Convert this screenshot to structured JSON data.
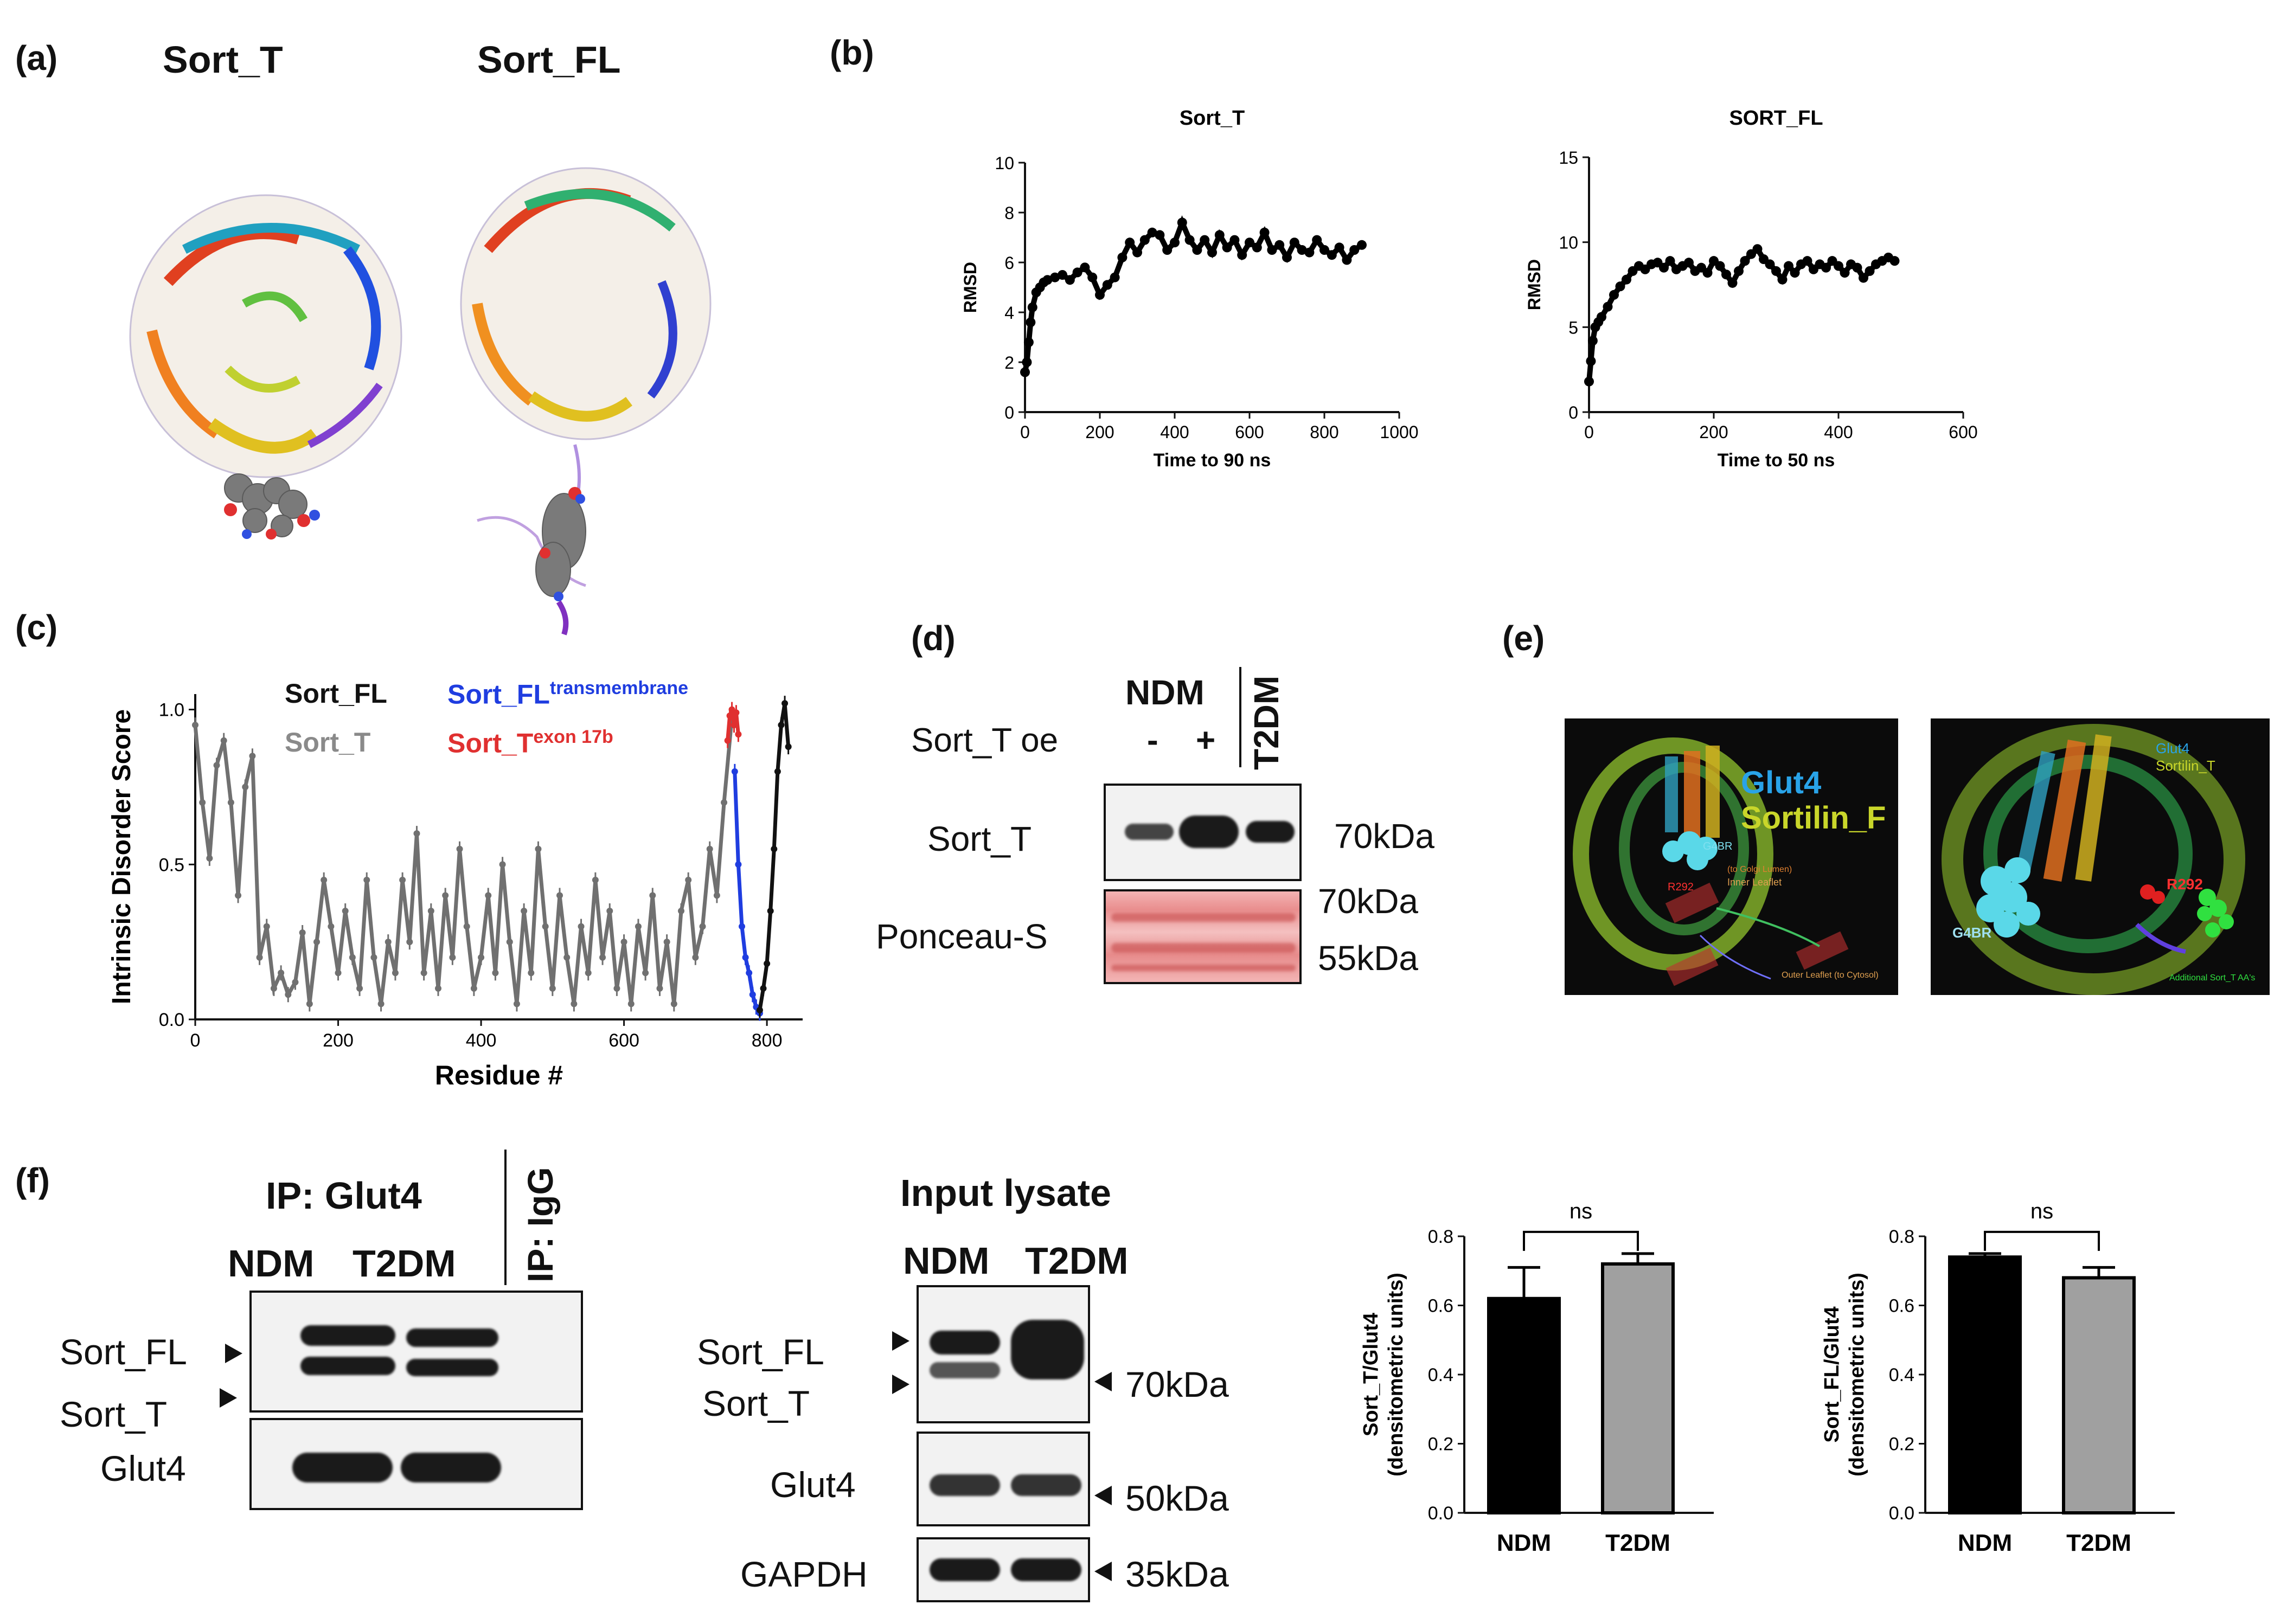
{
  "panels": {
    "a": "(a)",
    "b": "(b)",
    "c": "(c)",
    "d": "(d)",
    "e": "(e)",
    "f": "(f)"
  },
  "panel_a": {
    "title_left": "Sort_T",
    "title_right": "Sort_FL"
  },
  "panel_c": {
    "legend": {
      "sort_fl": "Sort_FL",
      "sort_t": "Sort_T",
      "tm_base": "Sort_FL",
      "tm_sup": "transmembrane",
      "exon_base": "Sort_T",
      "exon_sup": "exon 17b"
    }
  },
  "panel_d": {
    "ndm": "NDM",
    "t2dm": "T2DM",
    "oe_label": "Sort_T oe",
    "minus": "-",
    "plus": "+",
    "row1": "Sort_T",
    "row2": "Ponceau-S",
    "mw1": "70kDa",
    "mw2": "70kDa",
    "mw3": "55kDa"
  },
  "panel_e": {
    "left": {
      "glut4": "Glut4",
      "sortilin": "Sortilin_F",
      "g4br": "G4BR",
      "r292": "R292",
      "lumen": "(to Golgi Lumen)",
      "inner": "Inner Leaflet",
      "outer": "Outer Leaflet (to Cytosol)"
    },
    "right": {
      "glut4": "Glut4",
      "sortilin": "Sortilin_T",
      "r292": "R292",
      "g4br": "G4BR",
      "extra": "Additional Sort_T AA's"
    }
  },
  "panel_f": {
    "ip_title": "IP: Glut4",
    "igg": "IP: IgG",
    "ndm": "NDM",
    "t2dm": "T2DM",
    "sort_fl": "Sort_FL",
    "sort_t": "Sort_T",
    "glut4": "Glut4",
    "input_title": "Input lysate",
    "in_ndm": "NDM",
    "in_t2dm": "T2DM",
    "in_sort_fl": "Sort_FL",
    "in_sort_t": "Sort_T",
    "in_glut4": "Glut4",
    "in_gapdh": "GAPDH",
    "mw70": "70kDa",
    "mw50": "50kDa",
    "mw35": "35kDa"
  },
  "chart_data": [
    {
      "id": "rmsd_sort_t",
      "type": "scatter",
      "title": "Sort_T",
      "xlabel": "Time to 90 ns",
      "ylabel": "RMSD",
      "xlim": [
        0,
        1000
      ],
      "ylim": [
        0,
        10
      ],
      "xticks": [
        0,
        200,
        400,
        600,
        800,
        1000
      ],
      "yticks": [
        0,
        2,
        4,
        6,
        8,
        10
      ],
      "x": [
        0,
        5,
        10,
        15,
        20,
        30,
        40,
        50,
        60,
        80,
        100,
        120,
        140,
        160,
        180,
        200,
        220,
        240,
        260,
        280,
        300,
        320,
        340,
        360,
        380,
        400,
        420,
        440,
        460,
        480,
        500,
        520,
        540,
        560,
        580,
        600,
        620,
        640,
        660,
        680,
        700,
        720,
        740,
        760,
        780,
        800,
        820,
        840,
        860,
        880,
        900
      ],
      "y": [
        1.6,
        2.0,
        2.8,
        3.6,
        4.2,
        4.8,
        5.0,
        5.2,
        5.3,
        5.4,
        5.5,
        5.3,
        5.6,
        5.8,
        5.4,
        4.7,
        5.1,
        5.4,
        6.2,
        6.8,
        6.4,
        6.9,
        7.2,
        7.1,
        6.5,
        6.8,
        7.6,
        6.9,
        6.5,
        6.9,
        6.4,
        7.1,
        6.6,
        6.9,
        6.3,
        6.8,
        6.6,
        7.2,
        6.5,
        6.7,
        6.2,
        6.8,
        6.5,
        6.4,
        6.9,
        6.5,
        6.3,
        6.6,
        6.1,
        6.5,
        6.7
      ]
    },
    {
      "id": "rmsd_sort_fl",
      "type": "scatter",
      "title": "SORT_FL",
      "xlabel": "Time to 50 ns",
      "ylabel": "RMSD",
      "xlim": [
        0,
        600
      ],
      "ylim": [
        0,
        15
      ],
      "xticks": [
        0,
        200,
        400,
        600
      ],
      "yticks": [
        0,
        5,
        10,
        15
      ],
      "x": [
        0,
        3,
        6,
        10,
        15,
        20,
        30,
        40,
        50,
        60,
        70,
        80,
        90,
        100,
        110,
        120,
        130,
        140,
        150,
        160,
        170,
        180,
        190,
        200,
        210,
        220,
        230,
        240,
        250,
        260,
        270,
        280,
        290,
        300,
        310,
        320,
        330,
        340,
        350,
        360,
        370,
        380,
        390,
        400,
        410,
        420,
        430,
        440,
        450,
        460,
        470,
        480,
        490
      ],
      "y": [
        1.8,
        3.0,
        4.2,
        5.0,
        5.3,
        5.6,
        6.2,
        6.9,
        7.4,
        7.8,
        8.3,
        8.6,
        8.4,
        8.7,
        8.8,
        8.5,
        8.9,
        8.4,
        8.6,
        8.8,
        8.3,
        8.5,
        8.2,
        8.9,
        8.6,
        8.1,
        7.6,
        8.3,
        8.9,
        9.3,
        9.6,
        9.0,
        8.7,
        8.3,
        7.8,
        8.6,
        8.2,
        8.7,
        8.9,
        8.4,
        8.7,
        8.5,
        8.9,
        8.6,
        8.2,
        8.7,
        8.5,
        7.9,
        8.3,
        8.7,
        8.9,
        9.1,
        8.9
      ]
    },
    {
      "id": "intrinsic_disorder",
      "type": "line",
      "xlabel": "Residue #",
      "ylabel": "Intrinsic  Disorder Score",
      "xlim": [
        0,
        850
      ],
      "ylim": [
        0,
        1.05
      ],
      "xticks": [
        0,
        200,
        400,
        600,
        800
      ],
      "yticks": [
        0.0,
        0.5,
        1.0
      ],
      "series": [
        {
          "name": "Sort_T",
          "color": "#707070",
          "x": [
            0,
            10,
            20,
            30,
            40,
            50,
            60,
            70,
            80,
            90,
            100,
            110,
            120,
            130,
            140,
            150,
            160,
            170,
            180,
            190,
            200,
            210,
            220,
            230,
            240,
            250,
            260,
            270,
            280,
            290,
            300,
            310,
            320,
            330,
            340,
            350,
            360,
            370,
            380,
            390,
            400,
            410,
            420,
            430,
            440,
            450,
            460,
            470,
            480,
            490,
            500,
            510,
            520,
            530,
            540,
            550,
            560,
            570,
            580,
            590,
            600,
            610,
            620,
            630,
            640,
            650,
            660,
            670,
            680,
            690,
            700,
            710,
            720,
            730,
            740,
            750
          ],
          "y": [
            0.95,
            0.7,
            0.52,
            0.82,
            0.9,
            0.7,
            0.4,
            0.75,
            0.85,
            0.2,
            0.3,
            0.1,
            0.15,
            0.08,
            0.12,
            0.28,
            0.05,
            0.25,
            0.45,
            0.3,
            0.15,
            0.35,
            0.2,
            0.1,
            0.45,
            0.2,
            0.05,
            0.25,
            0.15,
            0.45,
            0.25,
            0.6,
            0.15,
            0.35,
            0.1,
            0.4,
            0.2,
            0.55,
            0.3,
            0.1,
            0.2,
            0.4,
            0.15,
            0.5,
            0.25,
            0.05,
            0.35,
            0.15,
            0.55,
            0.3,
            0.1,
            0.4,
            0.2,
            0.05,
            0.3,
            0.15,
            0.45,
            0.2,
            0.35,
            0.1,
            0.25,
            0.05,
            0.3,
            0.15,
            0.4,
            0.1,
            0.25,
            0.05,
            0.35,
            0.45,
            0.2,
            0.3,
            0.55,
            0.4,
            0.7,
            0.95
          ]
        },
        {
          "name": "Sort_T exon 17b",
          "color": "#e03030",
          "x": [
            745,
            748,
            751,
            754,
            757,
            760
          ],
          "y": [
            0.9,
            0.98,
            1.0,
            0.95,
            0.99,
            0.92
          ]
        },
        {
          "name": "Sort_FL transmembrane",
          "color": "#1f3de0",
          "x": [
            755,
            760,
            765,
            770,
            775,
            780,
            785,
            790
          ],
          "y": [
            0.8,
            0.5,
            0.3,
            0.2,
            0.15,
            0.08,
            0.04,
            0.02
          ]
        },
        {
          "name": "Sort_FL",
          "color": "#111111",
          "x": [
            790,
            795,
            800,
            805,
            810,
            815,
            820,
            825,
            830
          ],
          "y": [
            0.03,
            0.1,
            0.18,
            0.35,
            0.55,
            0.8,
            0.95,
            1.02,
            0.88
          ]
        }
      ]
    },
    {
      "id": "bar_sort_t_glut4",
      "type": "bar",
      "categories": [
        "NDM",
        "T2DM"
      ],
      "values": [
        0.62,
        0.72
      ],
      "errors": [
        0.09,
        0.03
      ],
      "colors": [
        "#000000",
        "#a0a0a0"
      ],
      "ylabel": "Sort_T/Glut4\n(densitometric units)",
      "ylim": [
        0,
        0.8
      ],
      "yticks": [
        0.0,
        0.2,
        0.4,
        0.6,
        0.8
      ],
      "annotation": "ns"
    },
    {
      "id": "bar_sort_fl_glut4",
      "type": "bar",
      "categories": [
        "NDM",
        "T2DM"
      ],
      "values": [
        0.74,
        0.68
      ],
      "errors": [
        0.01,
        0.03
      ],
      "colors": [
        "#000000",
        "#a0a0a0"
      ],
      "ylabel": "Sort_FL/Glut4\n(densitometric units)",
      "ylim": [
        0,
        0.8
      ],
      "yticks": [
        0.0,
        0.2,
        0.4,
        0.6,
        0.8
      ],
      "annotation": "ns"
    }
  ]
}
